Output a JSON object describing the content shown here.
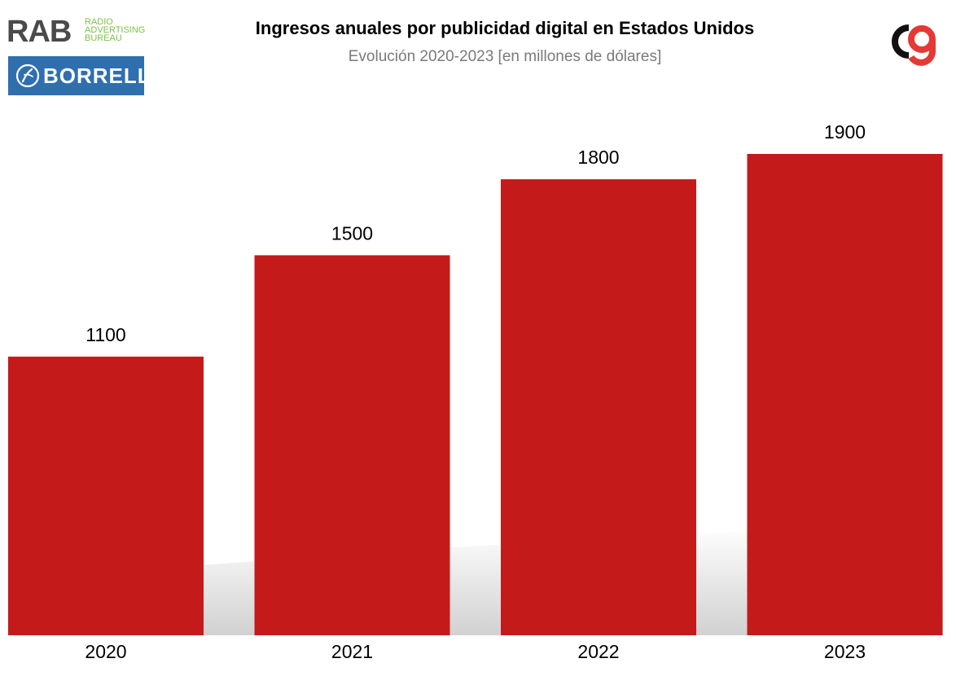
{
  "header": {
    "title": "Ingresos anuales por publicidad digital en Estados Unidos",
    "subtitle": "Evolución 2020-2023 [en millones de dólares]"
  },
  "logos": {
    "rab": {
      "letters": "RAB",
      "sub": "RADIO\nADVERTISING\nBUREAU",
      "letter_color": "#4a4a4a",
      "sub_color": "#7cc242"
    },
    "borrell": {
      "text": "BORRELL",
      "background": "#2f6fae"
    },
    "cg_icon": "cg-brand-icon"
  },
  "chart_data": {
    "type": "bar",
    "title": "Ingresos anuales por publicidad digital en Estados Unidos",
    "subtitle": "Evolución 2020-2023 [en millones de dólares]",
    "categories": [
      "2020",
      "2021",
      "2022",
      "2023"
    ],
    "values": [
      1100,
      1500,
      1800,
      1900
    ],
    "value_labels": [
      "1100",
      "1500",
      "1800",
      "1900"
    ],
    "xlabel": "",
    "ylabel": "",
    "ylim": [
      0,
      1900
    ],
    "grid": false,
    "legend": "none",
    "bar_color": "#c51a1a"
  }
}
